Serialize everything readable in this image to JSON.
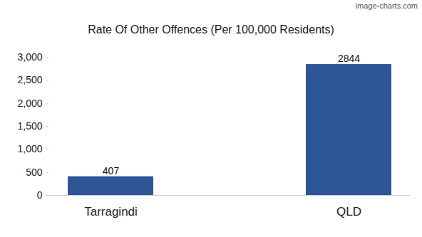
{
  "chart_data": {
    "type": "bar",
    "title": "Rate Of Other Offences (Per 100,000 Residents)",
    "annotations": [
      "image-charts.com"
    ],
    "categories": [
      "Tarragindi",
      "QLD"
    ],
    "values": [
      407,
      2844
    ],
    "color": "#2e5597",
    "ylim": [
      0,
      3000
    ],
    "yticks": [
      0,
      500,
      1000,
      1500,
      2000,
      2500,
      3000
    ],
    "grid": false,
    "data_labels": true
  }
}
